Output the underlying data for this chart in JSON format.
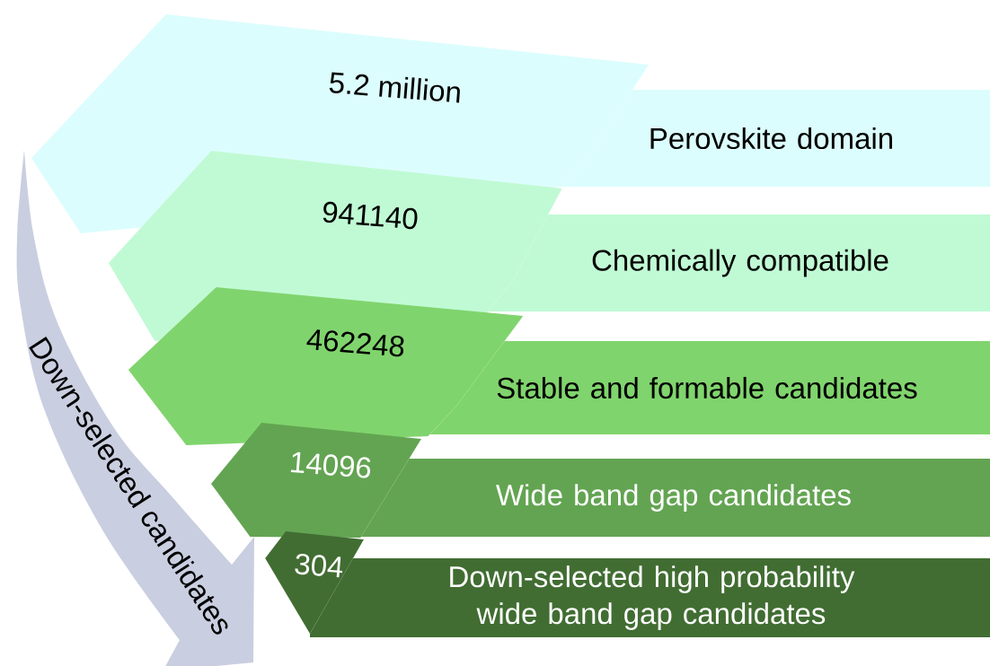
{
  "chart_data": {
    "type": "other",
    "categories": [
      "Perovskite domain",
      "Chemically compatible",
      "Stable and formable candidates",
      "Wide band gap candidates",
      "Down-selected high probability wide band gap candidates"
    ],
    "values": [
      5200000,
      941140,
      462248,
      14096,
      304
    ],
    "value_labels": [
      "5.2 million",
      "941140",
      "462248",
      "14096",
      "304"
    ],
    "colors": [
      "#dcfdfd",
      "#c0fad4",
      "#80d46d",
      "#63a452",
      "#416d32"
    ],
    "annotations": [
      "Down-selected candidates"
    ]
  }
}
